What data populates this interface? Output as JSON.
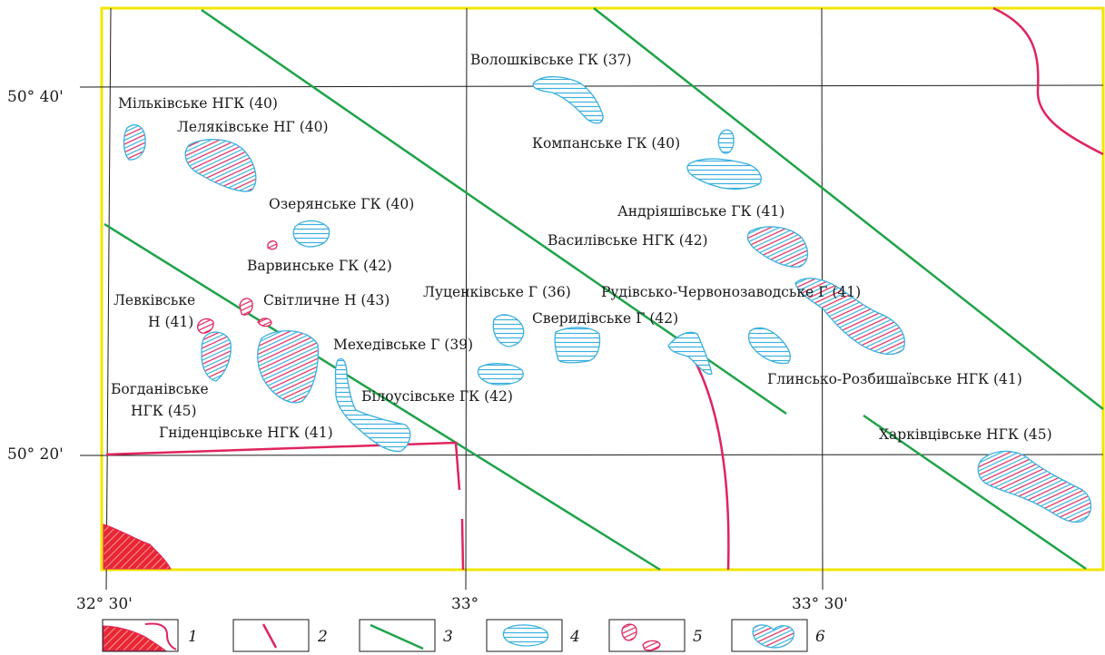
{
  "colors": {
    "frame": "#f2e600",
    "grid": "#1a1a1a",
    "gas_field": "#3ab0e0",
    "oil_field": "#e0245e",
    "fault": "#e0245e",
    "green_line": "#1fa34a",
    "salt_fill": "#e8253a"
  },
  "coordinates": {
    "lat_top": "50° 40'",
    "lat_bottom": "50° 20'",
    "lon_left": "32° 30'",
    "lon_mid": "33°",
    "lon_right": "33° 30'"
  },
  "fields": [
    {
      "id": "milkivske",
      "label": "Мільківське НГК (40)",
      "type": "oil-gas"
    },
    {
      "id": "leliakivske",
      "label": "Леляківське НГ (40)",
      "type": "oil-gas"
    },
    {
      "id": "ozeriansk",
      "label": "Озерянське ГК (40)",
      "type": "gas"
    },
    {
      "id": "varvynske",
      "label": "Варвинське ГК (42)",
      "type": "oil"
    },
    {
      "id": "levkivske",
      "label_line1": "Левківське",
      "label_line2": "Н (41)",
      "type": "oil"
    },
    {
      "id": "svitlychne",
      "label": "Світличне Н (43)",
      "type": "oil"
    },
    {
      "id": "bohdanivske",
      "label_line1": "Богданівське",
      "label_line2": "НГК (45)",
      "type": "gas"
    },
    {
      "id": "hnidentsivske",
      "label": "Гніденцівське НГК (41)",
      "type": "oil-gas"
    },
    {
      "id": "mekhedivske",
      "label": "Мехедівське Г (39)",
      "type": "gas"
    },
    {
      "id": "bilousivske",
      "label": "Білоусівське ГК (42)",
      "type": "gas"
    },
    {
      "id": "lutsenkivske",
      "label": "Луценківське Г (36)",
      "type": "gas"
    },
    {
      "id": "sverydivske",
      "label": "Сверидівське Г (42)",
      "type": "gas"
    },
    {
      "id": "voloshkivske",
      "label": "Волошківське ГК (37)",
      "type": "gas"
    },
    {
      "id": "kompanske",
      "label": "Компанське ГК (40)",
      "type": "gas"
    },
    {
      "id": "andriiashivske",
      "label": "Андріяшівське ГК (41)",
      "type": "gas"
    },
    {
      "id": "vasylivske",
      "label": "Василівське НГК (42)",
      "type": "oil-gas"
    },
    {
      "id": "rudivske",
      "label": "Рудівсько-Червонозаводське Г (41)",
      "type": "gas"
    },
    {
      "id": "glynske",
      "label": "Глинсько-Розбишаївське НГК (41)",
      "type": "oil-gas"
    },
    {
      "id": "kharkivtsivske",
      "label": "Харківцівське НГК (45)",
      "type": "oil-gas"
    }
  ],
  "legend": [
    {
      "num": "1",
      "symbol": "salt-dome"
    },
    {
      "num": "2",
      "symbol": "fault-line"
    },
    {
      "num": "3",
      "symbol": "green-line"
    },
    {
      "num": "4",
      "symbol": "gas-field"
    },
    {
      "num": "5",
      "symbol": "oil-field"
    },
    {
      "num": "6",
      "symbol": "oil-gas-field"
    }
  ]
}
